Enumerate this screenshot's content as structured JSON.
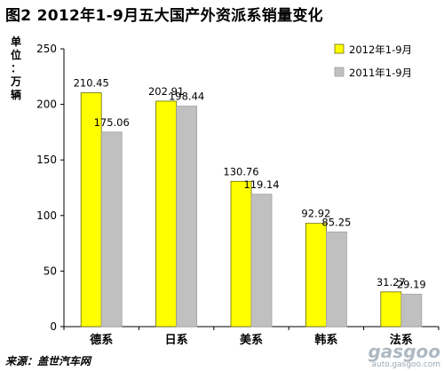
{
  "title": "图2   2012年1-9月五大国产外资派系销量变化",
  "unit_chars": [
    "单",
    "位",
    "：",
    "万",
    "辆"
  ],
  "source": "来源：盖世汽车网",
  "watermark": {
    "logo": "gasgoo",
    "url": "auto.gasgoo.com"
  },
  "colors": {
    "series_2012": "#ffff00",
    "series_2011": "#c0c0c0",
    "bar_outline": "#6b6b00"
  },
  "chart_data": {
    "type": "bar",
    "title": "图2   2012年1-9月五大国产外资派系销量变化",
    "ylabel": "单位：万辆",
    "xlabel": "",
    "ylim": [
      0,
      250
    ],
    "yticks": [
      0,
      50,
      100,
      150,
      200,
      250
    ],
    "grid": false,
    "legend_position": "top-right",
    "categories": [
      "德系",
      "日系",
      "美系",
      "韩系",
      "法系"
    ],
    "series": [
      {
        "name": "2012年1-9月",
        "values": [
          210.45,
          202.91,
          130.76,
          92.92,
          31.27
        ]
      },
      {
        "name": "2011年1-9月",
        "values": [
          175.06,
          198.44,
          119.14,
          85.25,
          29.19
        ]
      }
    ]
  }
}
